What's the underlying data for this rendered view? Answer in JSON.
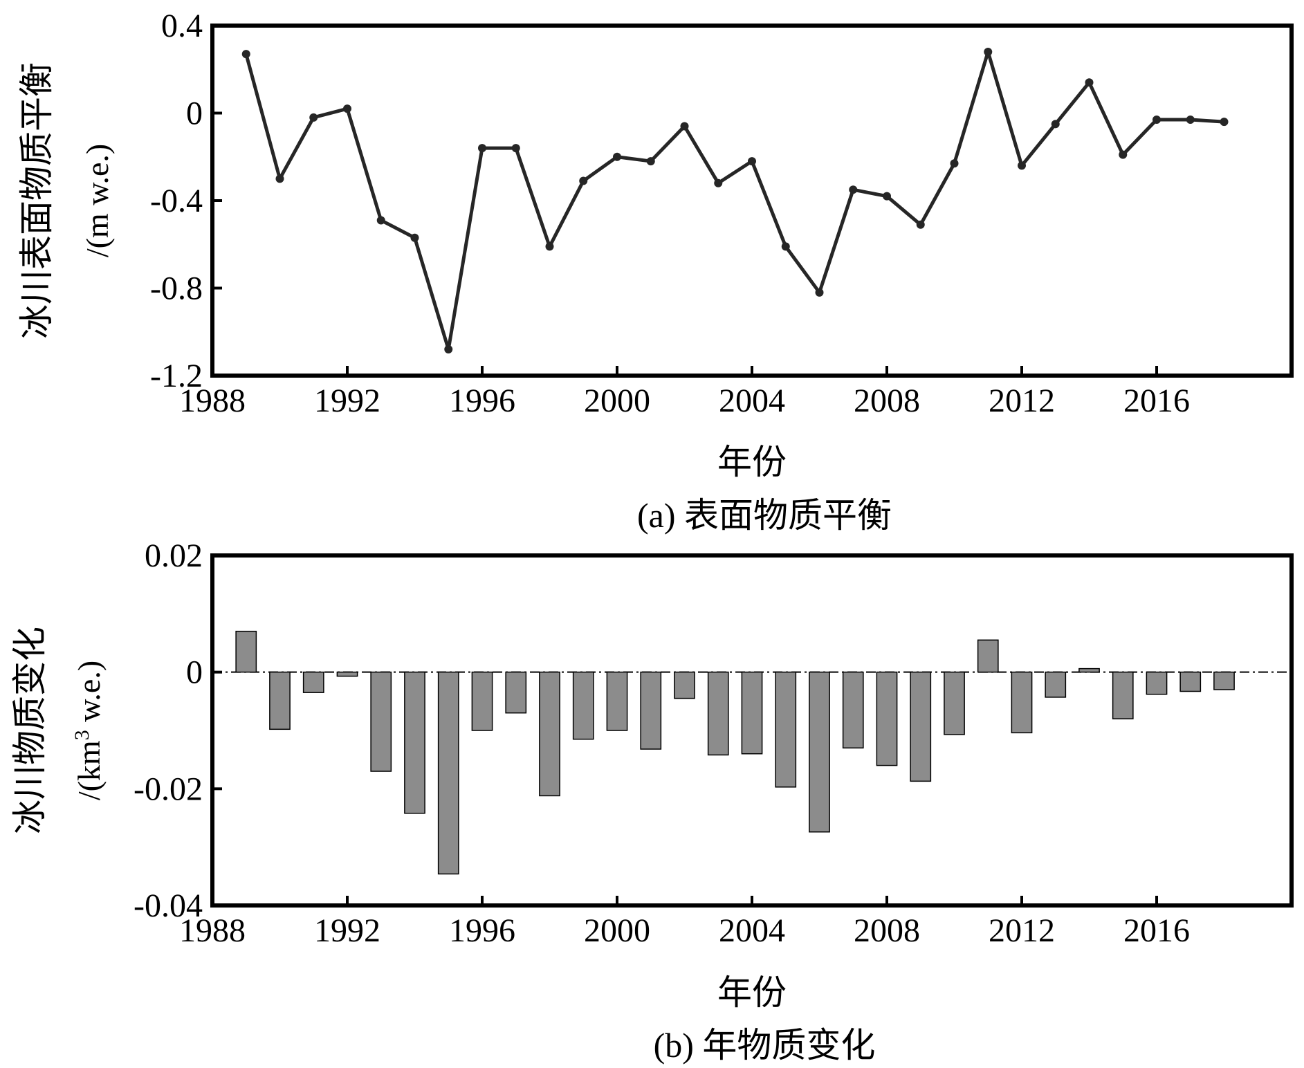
{
  "chart_data": [
    {
      "type": "line",
      "caption": "(a) 表面物质平衡",
      "xlabel": "年份",
      "ylabel_main": "冰川表面物质平衡",
      "ylabel_unit": "/(m w.e.)",
      "xlim": [
        1988,
        2020
      ],
      "ylim": [
        -1.2,
        0.4
      ],
      "xticks": [
        1988,
        1992,
        1996,
        2000,
        2004,
        2008,
        2012,
        2016
      ],
      "yticks": [
        0.4,
        0,
        -0.4,
        -0.8,
        -1.2
      ],
      "ytick_labels": [
        "0.4",
        "0",
        "-0.4",
        "-0.8",
        "-1.2"
      ],
      "line_color": "#262626",
      "x": [
        1989,
        1990,
        1991,
        1992,
        1993,
        1994,
        1995,
        1996,
        1997,
        1998,
        1999,
        2000,
        2001,
        2002,
        2003,
        2004,
        2005,
        2006,
        2007,
        2008,
        2009,
        2010,
        2011,
        2012,
        2013,
        2014,
        2015,
        2016,
        2017,
        2018
      ],
      "y": [
        0.27,
        -0.3,
        -0.02,
        0.02,
        -0.49,
        -0.57,
        -1.08,
        -0.16,
        -0.16,
        -0.61,
        -0.31,
        -0.2,
        -0.22,
        -0.06,
        -0.32,
        -0.22,
        -0.61,
        -0.82,
        -0.35,
        -0.38,
        -0.51,
        -0.23,
        0.28,
        -0.24,
        -0.05,
        0.14,
        -0.19,
        -0.03,
        -0.03,
        -0.04
      ]
    },
    {
      "type": "bar",
      "caption": "(b) 年物质变化",
      "xlabel": "年份",
      "ylabel_main": "冰川物质变化",
      "ylabel_unit_pre": "/(km",
      "ylabel_unit_sup": "3",
      "ylabel_unit_post": " w.e.)",
      "xlim": [
        1988,
        2020
      ],
      "ylim": [
        -0.04,
        0.02
      ],
      "xticks": [
        1988,
        1992,
        1996,
        2000,
        2004,
        2008,
        2012,
        2016
      ],
      "yticks": [
        0.02,
        0,
        -0.02,
        -0.04
      ],
      "ytick_labels": [
        "0.02",
        "0",
        "-0.02",
        "-0.04"
      ],
      "bar_color": "#8c8c8c",
      "zero_line": "dash-dot",
      "x": [
        1989,
        1990,
        1991,
        1992,
        1993,
        1994,
        1995,
        1996,
        1997,
        1998,
        1999,
        2000,
        2001,
        2002,
        2003,
        2004,
        2005,
        2006,
        2007,
        2008,
        2009,
        2010,
        2011,
        2012,
        2013,
        2014,
        2015,
        2016,
        2017,
        2018
      ],
      "values": [
        0.007,
        -0.0098,
        -0.0035,
        -0.0007,
        -0.017,
        -0.0242,
        -0.0346,
        -0.01,
        -0.007,
        -0.0212,
        -0.0115,
        -0.01,
        -0.0132,
        -0.0045,
        -0.0142,
        -0.014,
        -0.0197,
        -0.0274,
        -0.013,
        -0.016,
        -0.0187,
        -0.0107,
        0.0055,
        -0.0104,
        -0.0043,
        0.0006,
        -0.008,
        -0.0038,
        -0.0033,
        -0.003
      ]
    }
  ]
}
